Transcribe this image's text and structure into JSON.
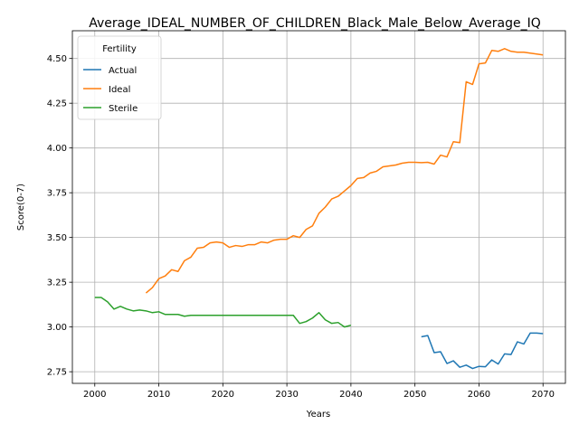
{
  "chart_data": {
    "type": "line",
    "title": "Average_IDEAL_NUMBER_OF_CHILDREN_Black_Male_Below_Average_IQ",
    "xlabel": "Years",
    "ylabel": "Score(0-7)",
    "xlim": [
      1996.5,
      2073.5
    ],
    "ylim": [
      2.685,
      4.655
    ],
    "xticks": [
      2000,
      2010,
      2020,
      2030,
      2040,
      2050,
      2060,
      2070
    ],
    "yticks": [
      2.75,
      3.0,
      3.25,
      3.5,
      3.75,
      4.0,
      4.25,
      4.5
    ],
    "ytick_labels": [
      "2.75",
      "3.00",
      "3.25",
      "3.50",
      "3.75",
      "4.00",
      "4.25",
      "4.50"
    ],
    "grid": true,
    "legend": {
      "title": "Fertility",
      "position": "top-left"
    },
    "series": [
      {
        "name": "Actual",
        "color": "#1f77b4",
        "x": [
          2051,
          2052,
          2053,
          2054,
          2055,
          2056,
          2057,
          2058,
          2059,
          2060,
          2061,
          2062,
          2063,
          2064,
          2065,
          2066,
          2067,
          2068,
          2069,
          2070
        ],
        "y": [
          2.945,
          2.952,
          2.857,
          2.862,
          2.796,
          2.811,
          2.775,
          2.787,
          2.768,
          2.78,
          2.778,
          2.816,
          2.793,
          2.85,
          2.846,
          2.917,
          2.905,
          2.966,
          2.966,
          2.963
        ]
      },
      {
        "name": "Ideal",
        "color": "#ff7f0e",
        "x": [
          2008,
          2009,
          2010,
          2011,
          2012,
          2013,
          2014,
          2015,
          2016,
          2017,
          2018,
          2019,
          2020,
          2021,
          2022,
          2023,
          2024,
          2025,
          2026,
          2027,
          2028,
          2029,
          2030,
          2031,
          2032,
          2033,
          2034,
          2035,
          2036,
          2037,
          2038,
          2039,
          2040,
          2041,
          2042,
          2043,
          2044,
          2045,
          2046,
          2047,
          2048,
          2049,
          2050,
          2051,
          2052,
          2053,
          2054,
          2055,
          2056,
          2057,
          2058,
          2059,
          2060,
          2061,
          2062,
          2063,
          2064,
          2065,
          2066,
          2067,
          2068,
          2069,
          2070
        ],
        "y": [
          3.19,
          3.22,
          3.27,
          3.285,
          3.32,
          3.31,
          3.37,
          3.39,
          3.44,
          3.445,
          3.47,
          3.475,
          3.47,
          3.445,
          3.455,
          3.45,
          3.46,
          3.46,
          3.475,
          3.47,
          3.485,
          3.49,
          3.49,
          3.51,
          3.5,
          3.545,
          3.565,
          3.635,
          3.67,
          3.715,
          3.73,
          3.76,
          3.79,
          3.83,
          3.835,
          3.86,
          3.87,
          3.895,
          3.9,
          3.905,
          3.915,
          3.92,
          3.92,
          3.918,
          3.92,
          3.91,
          3.96,
          3.95,
          4.035,
          4.03,
          4.37,
          4.355,
          4.47,
          4.475,
          4.545,
          4.54,
          4.555,
          4.54,
          4.535,
          4.535,
          4.53,
          4.525,
          4.52
        ]
      },
      {
        "name": "Sterile",
        "color": "#2ca02c",
        "x": [
          2000,
          2001,
          2002,
          2003,
          2004,
          2005,
          2006,
          2007,
          2008,
          2009,
          2010,
          2011,
          2012,
          2013,
          2014,
          2015,
          2016,
          2017,
          2018,
          2019,
          2020,
          2021,
          2022,
          2023,
          2024,
          2025,
          2026,
          2027,
          2028,
          2029,
          2030,
          2031,
          2032,
          2033,
          2034,
          2035,
          2036,
          2037,
          2038,
          2039,
          2040
        ],
        "y": [
          3.165,
          3.165,
          3.14,
          3.1,
          3.115,
          3.1,
          3.09,
          3.095,
          3.09,
          3.08,
          3.085,
          3.07,
          3.07,
          3.07,
          3.06,
          3.065,
          3.065,
          3.065,
          3.065,
          3.065,
          3.065,
          3.065,
          3.065,
          3.065,
          3.065,
          3.065,
          3.065,
          3.065,
          3.065,
          3.065,
          3.065,
          3.065,
          3.02,
          3.03,
          3.05,
          3.08,
          3.04,
          3.02,
          3.025,
          3.0,
          3.01
        ]
      }
    ]
  }
}
